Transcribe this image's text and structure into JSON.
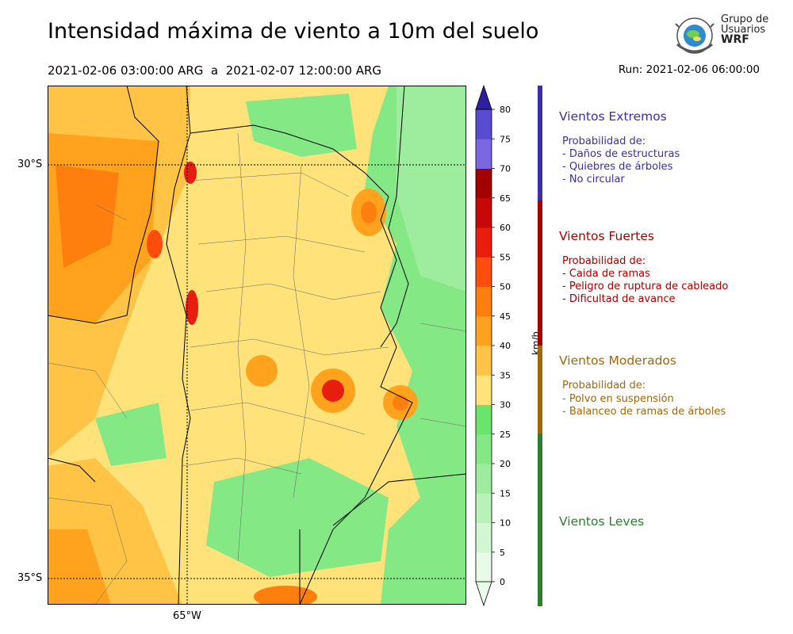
{
  "header": {
    "title": "Intensidad máxima de viento a 10m del suelo",
    "date_range": "2021-02-06 03:00:00 ARG  a  2021-02-07 12:00:00 ARG",
    "run": "Run: 2021-02-06 06:00:00"
  },
  "logo": {
    "line1": "Grupo de",
    "line2": "Usuarios",
    "line3": "WRF"
  },
  "map": {
    "lat_labels": [
      "30°S",
      "35°S"
    ],
    "lon_labels": [
      "65°W"
    ]
  },
  "colorbar": {
    "unit": "km/h",
    "ticks": [
      "0",
      "5",
      "10",
      "15",
      "20",
      "25",
      "30",
      "35",
      "40",
      "45",
      "50",
      "55",
      "60",
      "65",
      "70",
      "75",
      "80"
    ],
    "colors": [
      "#e8fbe8",
      "#d2f7d2",
      "#b8f2b8",
      "#9eed9e",
      "#84e884",
      "#6be46b",
      "#ffe27a",
      "#ffc445",
      "#ffa31f",
      "#ff7f0e",
      "#ff4d0d",
      "#e81d0d",
      "#c80808",
      "#a30000",
      "#7b68e0",
      "#5a4bd2",
      "#3c2fb8"
    ],
    "extend_color": "#2d1f9e"
  },
  "legend": [
    {
      "title": "Vientos Extremos",
      "color": "#3d2ea8",
      "prob_label": "Probabilidad de:",
      "items": [
        "- Daños de estructuras",
        "- Quiebres de árboles",
        "- No circular"
      ]
    },
    {
      "title": "Vientos Fuertes",
      "color": "#a50000",
      "prob_label": "Probabilidad de:",
      "items": [
        "- Caida de ramas",
        "- Peligro de ruptura de cableado",
        "- Dificultad de avance"
      ]
    },
    {
      "title": "Vientos Moderados",
      "color": "#a0680a",
      "prob_label": "Probabilidad de:",
      "items": [
        "- Polvo en suspensión",
        "- Balanceo de ramas de árboles"
      ]
    },
    {
      "title": "Vientos Leves",
      "color": "#2e7d32",
      "prob_label": "",
      "items": []
    }
  ]
}
